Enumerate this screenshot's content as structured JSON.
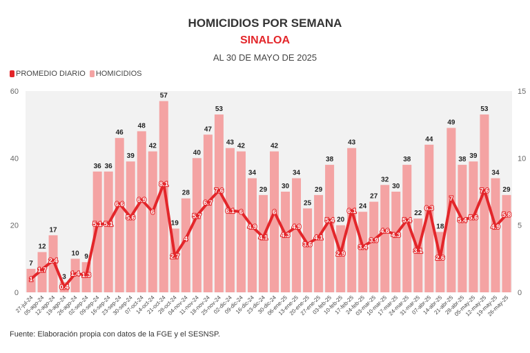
{
  "chart_data": {
    "type": "bar+line",
    "title": "HOMICIDIOS POR SEMANA",
    "subtitle": "SINALOA",
    "subtitle2": "AL 30 DE MAYO DE 2025",
    "legend_position": "top-left",
    "categories": [
      "27-jul-24",
      "05-ago-24",
      "12-ago-24",
      "19-ago-24",
      "26-ago-24",
      "02-sep-24",
      "09-sep-24",
      "16-sep-24",
      "23-sep-24",
      "30-sep-24",
      "07-oct-24",
      "14-oct-24",
      "21-oct-24",
      "28-oct-24",
      "04-nov-24",
      "11-nov-24",
      "18-nov-24",
      "25-nov-24",
      "02-dic-24",
      "09-dic-24",
      "16-dic-24",
      "23-dic-24",
      "30-dic-24",
      "06-ene-25",
      "13-ene-25",
      "20-ene-25",
      "27-ene-25",
      "03-feb-25",
      "10-feb-25",
      "17-feb-25",
      "24-feb-25",
      "03-mar-25",
      "10-mar-25",
      "17-mar-25",
      "24-mar-25",
      "31-mar-25",
      "07-abr-25",
      "14-abr-25",
      "21-abr-25",
      "28-abr-25",
      "05-may-25",
      "12-may-25",
      "19-may-25",
      "26-may-25"
    ],
    "series": [
      {
        "name": "HOMICIDIOS",
        "axis": "left",
        "color": "#f4a3a3",
        "values": [
          7,
          12,
          17,
          3,
          10,
          9,
          36,
          36,
          46,
          39,
          48,
          42,
          57,
          19,
          28,
          40,
          47,
          53,
          43,
          42,
          34,
          29,
          42,
          30,
          34,
          25,
          29,
          38,
          20,
          43,
          24,
          27,
          32,
          30,
          38,
          22,
          44,
          18,
          49,
          38,
          39,
          53,
          34,
          29
        ]
      },
      {
        "name": "PROMEDIO DIARIO",
        "axis": "right",
        "color": "#e3262a",
        "values": [
          1,
          1.7,
          2.4,
          0.4,
          1.4,
          1.3,
          5.1,
          5.1,
          6.6,
          5.6,
          6.9,
          6,
          8.1,
          2.7,
          4,
          5.7,
          6.7,
          7.6,
          6.1,
          6,
          4.9,
          4.1,
          6,
          4.3,
          4.9,
          3.6,
          4.1,
          5.4,
          2.9,
          6.1,
          3.4,
          3.9,
          4.6,
          4.3,
          5.4,
          3.1,
          6.3,
          2.6,
          7,
          5.4,
          5.6,
          7.6,
          4.9,
          5.8
        ]
      }
    ],
    "ylim_left": [
      0,
      60
    ],
    "yticks_left": [
      0,
      20,
      40,
      60
    ],
    "ylim_right": [
      0,
      15
    ],
    "yticks_right": [
      0,
      5,
      10,
      15
    ],
    "grid": false
  },
  "source": "Fuente: Elaboración propia con datos de la FGE y el SESNSP."
}
